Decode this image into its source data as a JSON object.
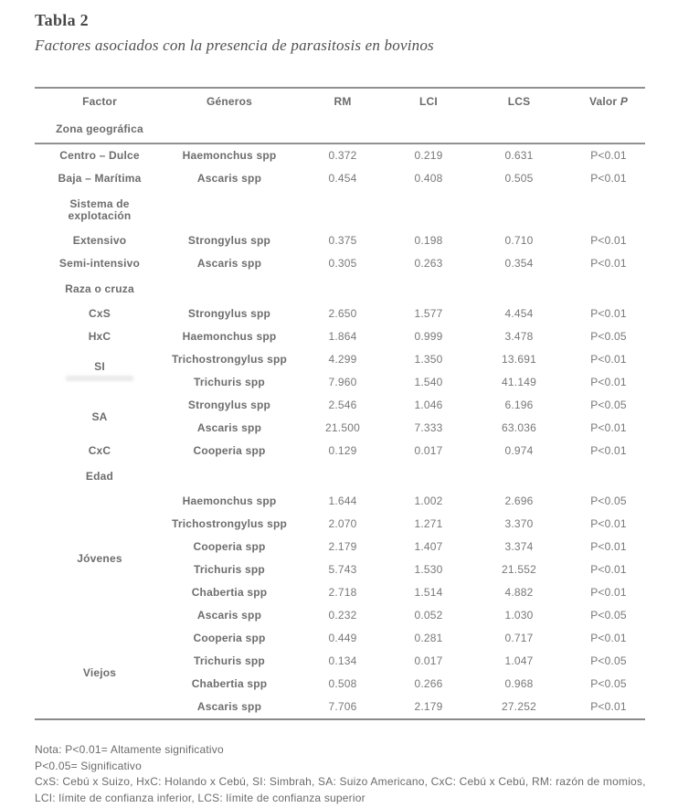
{
  "header": {
    "title": "Tabla 2",
    "subtitle": "Factores asociados con la presencia de parasitosis en bovinos"
  },
  "table": {
    "headers": [
      {
        "text": "Factor"
      },
      {
        "text": "Géneros"
      },
      {
        "text": "RM"
      },
      {
        "text": "LCI"
      },
      {
        "text": "LCS"
      },
      {
        "text": "Valor",
        "italic": "P"
      }
    ],
    "rows": [
      {
        "kind": "section",
        "label": "Zona geográfica",
        "rule_below": true
      },
      {
        "kind": "data",
        "factor": "Centro – Dulce",
        "genus": "Haemonchus spp",
        "rm": "0.372",
        "lci": "0.219",
        "lcs": "0.631",
        "p": "P<0.01"
      },
      {
        "kind": "data",
        "factor": "Baja – Marítima",
        "genus": "Ascaris spp",
        "rm": "0.454",
        "lci": "0.408",
        "lcs": "0.505",
        "p": "P<0.01"
      },
      {
        "kind": "section",
        "label": "Sistema de\nexplotación"
      },
      {
        "kind": "data",
        "factor": "Extensivo",
        "genus": "Strongylus spp",
        "rm": "0.375",
        "lci": "0.198",
        "lcs": "0.710",
        "p": "P<0.01"
      },
      {
        "kind": "data",
        "factor": "Semi-intensivo",
        "genus": "Ascaris spp",
        "rm": "0.305",
        "lci": "0.263",
        "lcs": "0.354",
        "p": "P<0.01"
      },
      {
        "kind": "section",
        "label": "Raza o cruza"
      },
      {
        "kind": "data",
        "factor": "CxS",
        "genus": "Strongylus spp",
        "rm": "2.650",
        "lci": "1.577",
        "lcs": "4.454",
        "p": "P<0.01"
      },
      {
        "kind": "data",
        "factor": "HxC",
        "genus": "Haemonchus spp",
        "rm": "1.864",
        "lci": "0.999",
        "lcs": "3.478",
        "p": "P<0.05"
      },
      {
        "kind": "data",
        "factor": "SI",
        "factor_rowspan": 2,
        "ghost": true,
        "genus": "Trichostrongylus spp",
        "rm": "4.299",
        "lci": "1.350",
        "lcs": "13.691",
        "p": "P<0.01"
      },
      {
        "kind": "data",
        "genus": "Trichuris spp",
        "rm": "7.960",
        "lci": "1.540",
        "lcs": "41.149",
        "p": "P<0.01"
      },
      {
        "kind": "data",
        "factor": "SA",
        "factor_rowspan": 2,
        "genus": "Strongylus spp",
        "rm": "2.546",
        "lci": "1.046",
        "lcs": "6.196",
        "p": "P<0.05"
      },
      {
        "kind": "data",
        "genus": "Ascaris spp",
        "rm": "21.500",
        "lci": "7.333",
        "lcs": "63.036",
        "p": "P<0.01"
      },
      {
        "kind": "data",
        "factor": "CxC",
        "genus": "Cooperia spp",
        "rm": "0.129",
        "lci": "0.017",
        "lcs": "0.974",
        "p": "P<0.01"
      },
      {
        "kind": "section",
        "label": "Edad"
      },
      {
        "kind": "data",
        "factor": "Jóvenes",
        "factor_rowspan": 6,
        "genus": "Haemonchus spp",
        "rm": "1.644",
        "lci": "1.002",
        "lcs": "2.696",
        "p": "P<0.05"
      },
      {
        "kind": "data",
        "genus": "Trichostrongylus spp",
        "rm": "2.070",
        "lci": "1.271",
        "lcs": "3.370",
        "p": "P<0.01"
      },
      {
        "kind": "data",
        "genus": "Cooperia spp",
        "rm": "2.179",
        "lci": "1.407",
        "lcs": "3.374",
        "p": "P<0.01"
      },
      {
        "kind": "data",
        "genus": "Trichuris spp",
        "rm": "5.743",
        "lci": "1.530",
        "lcs": "21.552",
        "p": "P<0.01"
      },
      {
        "kind": "data",
        "genus": "Chabertia spp",
        "rm": "2.718",
        "lci": "1.514",
        "lcs": "4.882",
        "p": "P<0.01"
      },
      {
        "kind": "data",
        "genus": "Ascaris spp",
        "rm": "0.232",
        "lci": "0.052",
        "lcs": "1.030",
        "p": "P<0.05"
      },
      {
        "kind": "data",
        "factor": "Viejos",
        "factor_rowspan": 4,
        "genus": "Cooperia spp",
        "rm": "0.449",
        "lci": "0.281",
        "lcs": "0.717",
        "p": "P<0.01"
      },
      {
        "kind": "data",
        "genus": "Trichuris spp",
        "rm": "0.134",
        "lci": "0.017",
        "lcs": "1.047",
        "p": "P<0.05"
      },
      {
        "kind": "data",
        "genus": "Chabertia spp",
        "rm": "0.508",
        "lci": "0.266",
        "lcs": "0.968",
        "p": "P<0.05"
      },
      {
        "kind": "data",
        "genus": "Ascaris spp",
        "rm": "7.706",
        "lci": "2.179",
        "lcs": "27.252",
        "p": "P<0.01"
      }
    ]
  },
  "notes": [
    "Nota: P<0.01= Altamente significativo",
    "P<0.05= Significativo",
    "CxS: Cebú x Suizo, HxC: Holando x Cebú, SI: Simbrah, SA: Suizo Americano, CxC: Cebú x Cebú, RM: razón de momios, LCI: límite de confianza inferior, LCS: límite de confianza superior"
  ],
  "colors": {
    "rule": "#909090",
    "label_text": "#6d6d6d",
    "number_text": "#787878",
    "title_text": "#474747"
  }
}
